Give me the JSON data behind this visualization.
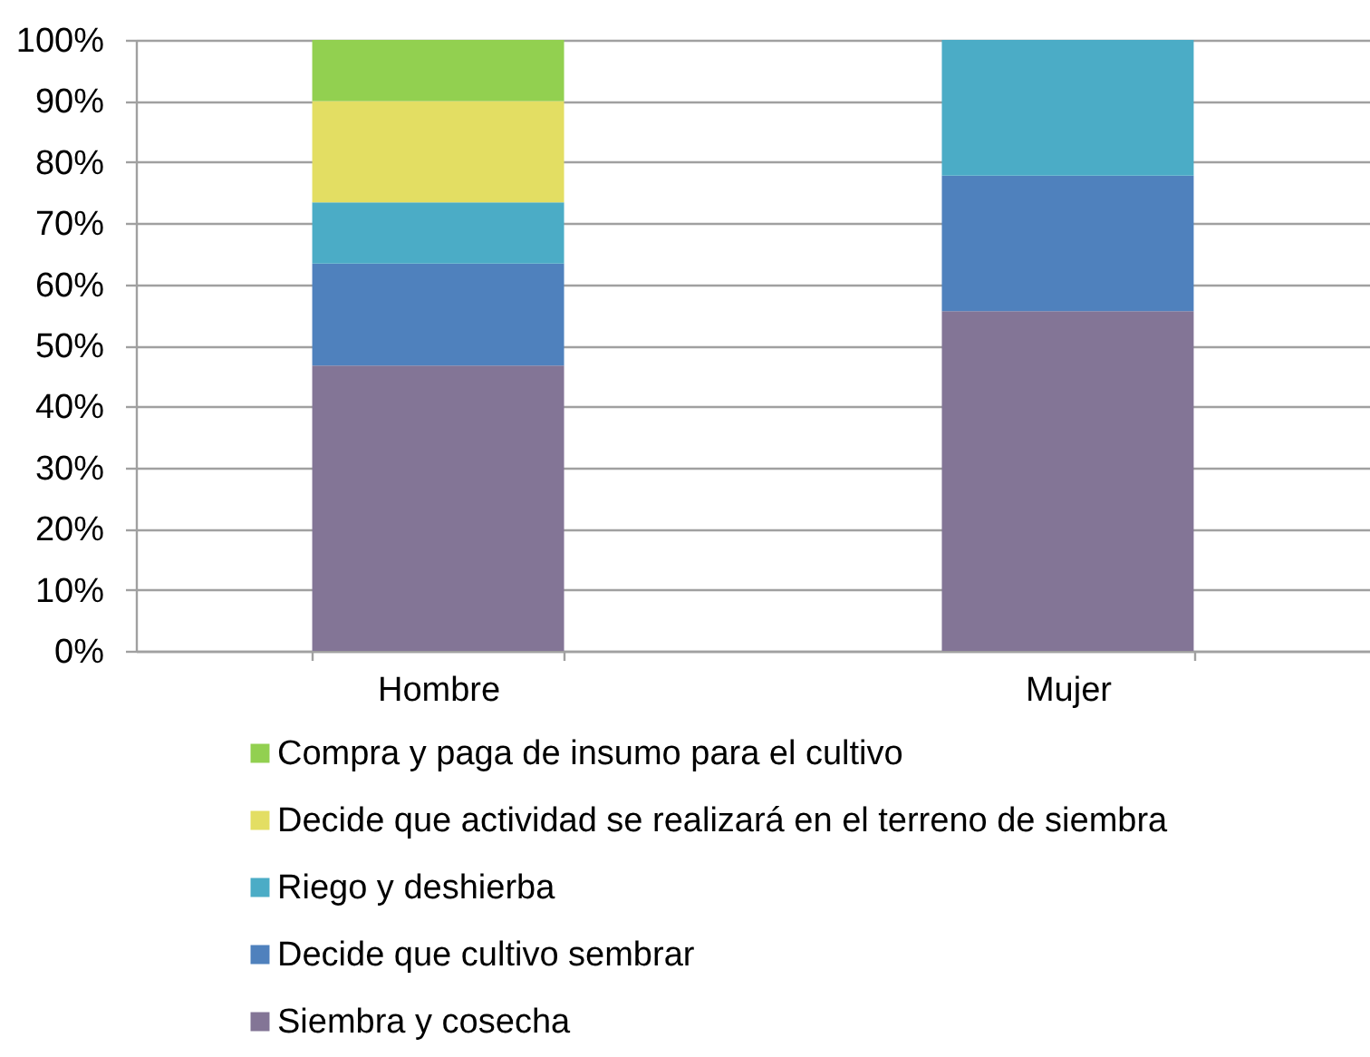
{
  "chart_data": {
    "type": "bar",
    "stacked": true,
    "categories": [
      "Hombre",
      "Mujer"
    ],
    "series": [
      {
        "name": "Siembra y cosecha",
        "color": "#837596",
        "values": [
          46.7,
          55.6
        ]
      },
      {
        "name": "Decide que cultivo sembrar",
        "color": "#4f81bd",
        "values": [
          16.7,
          22.2
        ]
      },
      {
        "name": "Riego y deshierba",
        "color": "#4bacc6",
        "values": [
          10,
          22.2
        ]
      },
      {
        "name": "Decide que actividad se realizará en el terreno de siembra",
        "color": "#e3de63",
        "values": [
          16.6,
          null
        ]
      },
      {
        "name": "Compra y paga de insumo para el cultivo",
        "color": "#92d050",
        "values": [
          10,
          null
        ]
      }
    ],
    "ylim": [
      0,
      100
    ],
    "yticks": [
      {
        "value": 0,
        "label": "0%"
      },
      {
        "value": 10,
        "label": "10%"
      },
      {
        "value": 20,
        "label": "20%"
      },
      {
        "value": 30,
        "label": "30%"
      },
      {
        "value": 40,
        "label": "40%"
      },
      {
        "value": 50,
        "label": "50%"
      },
      {
        "value": 60,
        "label": "60%"
      },
      {
        "value": 70,
        "label": "70%"
      },
      {
        "value": 80,
        "label": "80%"
      },
      {
        "value": 90,
        "label": "90%"
      },
      {
        "value": 100,
        "label": "100%"
      }
    ],
    "grid": "y",
    "legend": "bottom"
  }
}
